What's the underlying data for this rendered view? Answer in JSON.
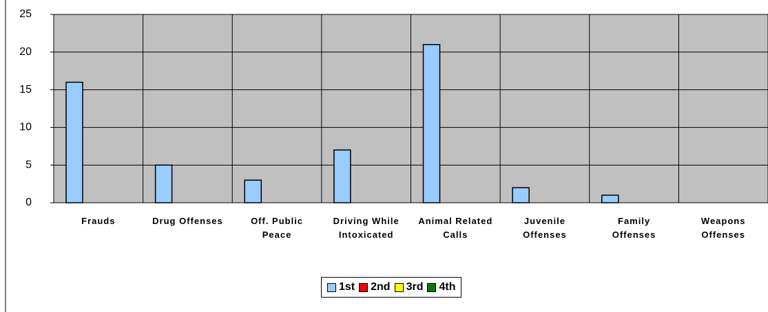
{
  "chart_data": {
    "type": "bar",
    "categories": [
      "Frauds",
      "Drug Offenses",
      "Off. Public Peace",
      "Driving While Intoxicated",
      "Animal Related Calls",
      "Juvenile Offenses",
      "Family Offenses",
      "Weapons Offenses"
    ],
    "series": [
      {
        "name": "1st",
        "color": "#99ccff",
        "values": [
          16,
          5,
          3,
          7,
          21,
          2,
          1,
          0
        ]
      },
      {
        "name": "2nd",
        "color": "#ff0000",
        "values": [
          0,
          0,
          0,
          0,
          0,
          0,
          0,
          0
        ]
      },
      {
        "name": "3rd",
        "color": "#ffff00",
        "values": [
          0,
          0,
          0,
          0,
          0,
          0,
          0,
          0
        ]
      },
      {
        "name": "4th",
        "color": "#008000",
        "values": [
          0,
          0,
          0,
          0,
          0,
          0,
          0,
          0
        ]
      }
    ],
    "ylim": [
      0,
      25
    ],
    "yticks": [
      0,
      5,
      10,
      15,
      20,
      25
    ],
    "grid": true,
    "legend": "bottom"
  }
}
